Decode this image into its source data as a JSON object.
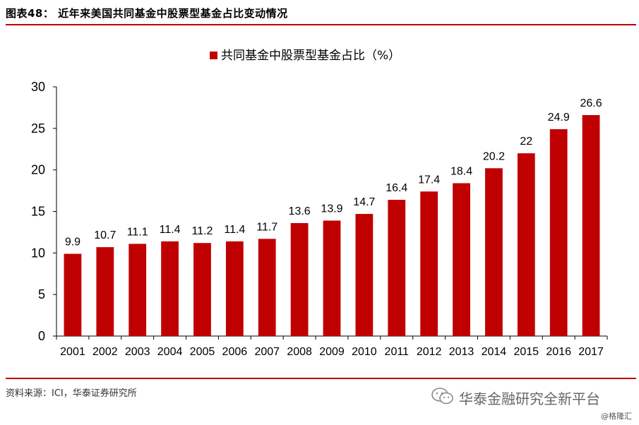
{
  "figure_title": "图表48： 近年来美国共同基金中股票型基金占比变动情况",
  "source": "资料来源：ICI，华泰证券研究所",
  "watermark": {
    "text": "华泰金融研究全新平台",
    "sub": "@格隆汇",
    "icon": "wechat-icon"
  },
  "colors": {
    "accent": "#c00000",
    "bar": "#c00000"
  },
  "chart_data": {
    "type": "bar",
    "categories": [
      "2001",
      "2002",
      "2003",
      "2004",
      "2005",
      "2006",
      "2007",
      "2008",
      "2009",
      "2010",
      "2011",
      "2012",
      "2013",
      "2014",
      "2015",
      "2016",
      "2017"
    ],
    "series": [
      {
        "name": "共同基金中股票型基金占比（%）",
        "values": [
          9.9,
          10.7,
          11.1,
          11.4,
          11.2,
          11.4,
          11.7,
          13.6,
          13.9,
          14.7,
          16.4,
          17.4,
          18.4,
          20.2,
          22,
          24.9,
          26.6
        ]
      }
    ],
    "data_labels": [
      "9.9",
      "10.7",
      "11.1",
      "11.4",
      "11.2",
      "11.4",
      "11.7",
      "13.6",
      "13.9",
      "14.7",
      "16.4",
      "17.4",
      "18.4",
      "20.2",
      "22",
      "24.9",
      "26.6"
    ],
    "yticks": [
      "0",
      "5",
      "10",
      "15",
      "20",
      "25",
      "30"
    ],
    "ylim": [
      0,
      30
    ],
    "grid": false,
    "legend": "top-center"
  }
}
